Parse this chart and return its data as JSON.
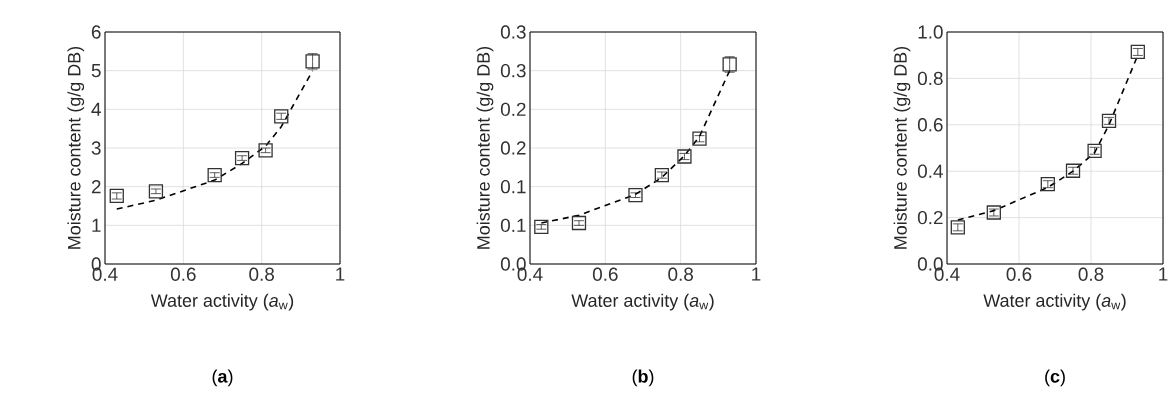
{
  "chart_data": [
    {
      "type": "scatter",
      "title": "(**a**)",
      "xlabel": "Water activity (*a*$_{w}$)",
      "ylabel": "Moisture content (g/g DB)",
      "xlim": [
        0.4,
        1
      ],
      "xticks": [
        0.4,
        0.6,
        0.8,
        1
      ],
      "ylim": [
        0,
        6
      ],
      "yticks": [
        0,
        1,
        2,
        3,
        4,
        5,
        6
      ],
      "grid": true,
      "marker": "square",
      "series": [
        {
          "color": "#333333",
          "x": [
            0.43,
            0.53,
            0.68,
            0.75,
            0.81,
            0.85,
            0.93
          ],
          "values": [
            1.76,
            1.88,
            2.3,
            2.74,
            2.94,
            3.82,
            5.24
          ],
          "errors": [
            0.08,
            0.06,
            0.06,
            0.06,
            0.06,
            0.08,
            0.2
          ]
        },
        {
          "type": "line",
          "color": "#000000",
          "line_style": "dashed",
          "marker": "none",
          "x": [
            0.43,
            0.53,
            0.68,
            0.75,
            0.81,
            0.85,
            0.93
          ],
          "values": [
            1.42,
            1.65,
            2.17,
            2.6,
            3.05,
            3.55,
            5.0
          ]
        }
      ]
    },
    {
      "type": "scatter",
      "title": "(**b**)",
      "xlabel": "Water activity (*a*$_{w}$)",
      "ylabel": "Moisture content (g/g DB)",
      "xlim": [
        0.4,
        1
      ],
      "xticks": [
        0.4,
        0.6,
        0.8,
        1
      ],
      "ylim": [
        0,
        0.3
      ],
      "yticks": [
        {
          "value": 0,
          "label": "0.0"
        },
        {
          "value": 0.05,
          "label": "0.1"
        },
        {
          "value": 0.1,
          "label": "0.1"
        },
        {
          "value": 0.15,
          "label": "0.2"
        },
        {
          "value": 0.2,
          "label": "0.2"
        },
        {
          "value": 0.25,
          "label": "0.3"
        },
        {
          "value": 0.3,
          "label": "0.3"
        }
      ],
      "grid": true,
      "marker": "square",
      "series": [
        {
          "color": "#333333",
          "x": [
            0.43,
            0.53,
            0.68,
            0.75,
            0.81,
            0.85,
            0.93
          ],
          "values": [
            0.048,
            0.053,
            0.089,
            0.115,
            0.139,
            0.162,
            0.258
          ],
          "errors": [
            0.003,
            0.003,
            0.003,
            0.004,
            0.004,
            0.004,
            0.01
          ]
        },
        {
          "type": "line",
          "color": "#000000",
          "line_style": "dashed",
          "marker": "none",
          "x": [
            0.43,
            0.53,
            0.68,
            0.75,
            0.81,
            0.85,
            0.93
          ],
          "values": [
            0.053,
            0.063,
            0.09,
            0.112,
            0.14,
            0.165,
            0.25
          ]
        }
      ]
    },
    {
      "type": "scatter",
      "title": "(**c**)",
      "xlabel": "Water activity (*a*$_{w}$)",
      "ylabel": "Moisture content (g/g DB)",
      "xlim": [
        0.4,
        1
      ],
      "xticks": [
        0.4,
        0.6,
        0.8,
        1
      ],
      "ylim": [
        0,
        1
      ],
      "yticks": [
        {
          "value": 0,
          "label": "0.0"
        },
        0.2,
        0.4,
        0.6,
        0.8,
        {
          "value": 1,
          "label": "1.0"
        }
      ],
      "grid": true,
      "marker": "square",
      "series": [
        {
          "color": "#333333",
          "x": [
            0.43,
            0.53,
            0.68,
            0.75,
            0.81,
            0.85,
            0.93
          ],
          "values": [
            0.158,
            0.222,
            0.344,
            0.402,
            0.488,
            0.617,
            0.914
          ],
          "errors": [
            0.015,
            0.015,
            0.015,
            0.015,
            0.015,
            0.015,
            0.015
          ]
        },
        {
          "type": "line",
          "color": "#000000",
          "line_style": "dashed",
          "marker": "none",
          "x": [
            0.43,
            0.53,
            0.68,
            0.75,
            0.81,
            0.85,
            0.93
          ],
          "values": [
            0.19,
            0.23,
            0.33,
            0.4,
            0.48,
            0.6,
            0.9
          ]
        }
      ]
    }
  ]
}
